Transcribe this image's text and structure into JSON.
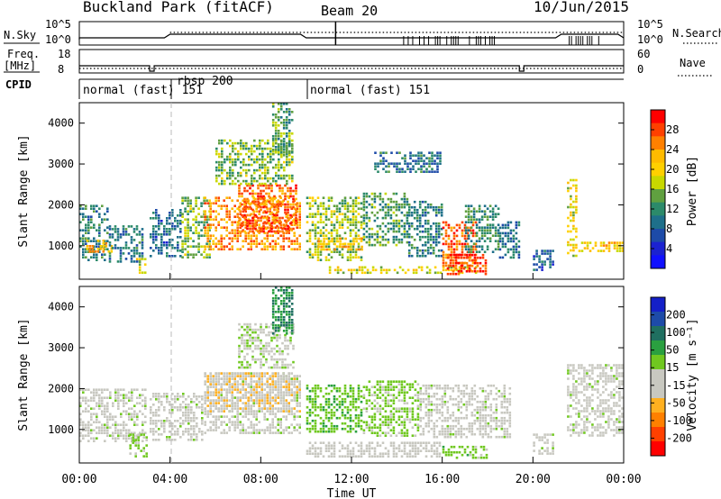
{
  "header": {
    "title": "Buckland Park (fitACF)",
    "beam": "Beam 20",
    "date": "10/Jun/2015"
  },
  "panels": {
    "nsky_label": "N.Sky",
    "nsearch_label": "N.Search",
    "freq_label_1": "Freq.",
    "freq_label_2": "[MHz]",
    "nave_label": "Nave",
    "cpid_label": "CPID",
    "nsky_ticks": [
      "10^5",
      "10^0"
    ],
    "nsearch_ticks": [
      "10^5",
      "10^0"
    ],
    "freq_ticks": [
      "18",
      "8"
    ],
    "nave_ticks": [
      "60",
      "0"
    ],
    "cpid_segments": [
      {
        "label": "normal (fast) 151",
        "start_hour": 0,
        "end_hour": 3.9
      },
      {
        "label": "rbsp 200",
        "start_hour": 3.9,
        "end_hour": 10.0
      },
      {
        "label": "normal (fast) 151",
        "start_hour": 10.0,
        "end_hour": 24
      }
    ]
  },
  "colorbars": {
    "power": {
      "label": "Power [dB]",
      "ticks": [
        "28",
        "24",
        "20",
        "16",
        "12",
        "8",
        "4"
      ],
      "colors": [
        "#ff0000",
        "#ff4000",
        "#ff8000",
        "#ffbb00",
        "#ffd000",
        "#c8d800",
        "#60a040",
        "#2c8a6a",
        "#1e6f8a",
        "#1d4ba8",
        "#1b22d0",
        "#1010ff"
      ]
    },
    "velocity": {
      "label": "Velocity [m s⁻¹]",
      "ticks": [
        "200",
        "100",
        "50",
        "15",
        "-15",
        "-50",
        "-100",
        "-200"
      ],
      "colors": [
        "#1420c8",
        "#1d4ba8",
        "#1f6f60",
        "#2aa040",
        "#70c820",
        "#c8c8c0",
        "#c8c8c0",
        "#ffb020",
        "#ff8000",
        "#ff4000",
        "#ff0000"
      ]
    }
  },
  "chart_data": [
    {
      "type": "heatmap",
      "title": "",
      "quantity": "Power",
      "xlabel": "Time UT",
      "ylabel": "Slant Range [km]",
      "xlim": [
        0,
        24
      ],
      "ylim": [
        180,
        4500
      ],
      "x_ticks": [
        "00:00",
        "04:00",
        "08:00",
        "12:00",
        "16:00",
        "20:00",
        "00:00"
      ],
      "y_ticks": [
        1000,
        2000,
        3000,
        4000
      ],
      "zlim": [
        0,
        30
      ],
      "regions": [
        {
          "t": [
            0.0,
            1.3
          ],
          "r": [
            600,
            2000
          ],
          "value": 10
        },
        {
          "t": [
            0.3,
            1.5
          ],
          "r": [
            850,
            1150
          ],
          "value": 22
        },
        {
          "t": [
            1.3,
            2.8
          ],
          "r": [
            600,
            1500
          ],
          "value": 9
        },
        {
          "t": [
            2.5,
            3.0
          ],
          "r": [
            300,
            700
          ],
          "value": 18
        },
        {
          "t": [
            3.1,
            4.5
          ],
          "r": [
            700,
            1900
          ],
          "value": 8
        },
        {
          "t": [
            4.5,
            5.8
          ],
          "r": [
            700,
            2200
          ],
          "value": 14
        },
        {
          "t": [
            5.5,
            9.8
          ],
          "r": [
            900,
            2200
          ],
          "value": 24
        },
        {
          "t": [
            7.0,
            9.6
          ],
          "r": [
            1300,
            2500
          ],
          "value": 26
        },
        {
          "t": [
            6.0,
            9.5
          ],
          "r": [
            2500,
            3600
          ],
          "value": 14
        },
        {
          "t": [
            8.5,
            9.5
          ],
          "r": [
            3200,
            4500
          ],
          "value": 12
        },
        {
          "t": [
            10.0,
            12.5
          ],
          "r": [
            600,
            2200
          ],
          "value": 15
        },
        {
          "t": [
            10.5,
            12.5
          ],
          "r": [
            900,
            1200
          ],
          "value": 22
        },
        {
          "t": [
            12.5,
            14.5
          ],
          "r": [
            1000,
            2300
          ],
          "value": 12
        },
        {
          "t": [
            11.0,
            17.5
          ],
          "r": [
            300,
            500
          ],
          "value": 18
        },
        {
          "t": [
            14.5,
            16.0
          ],
          "r": [
            700,
            2100
          ],
          "value": 10
        },
        {
          "t": [
            16.0,
            17.5
          ],
          "r": [
            500,
            1600
          ],
          "value": 26
        },
        {
          "t": [
            16.2,
            18.0
          ],
          "r": [
            300,
            800
          ],
          "value": 28
        },
        {
          "t": [
            17.0,
            18.5
          ],
          "r": [
            800,
            2000
          ],
          "value": 11
        },
        {
          "t": [
            18.5,
            19.5
          ],
          "r": [
            700,
            1600
          ],
          "value": 8
        },
        {
          "t": [
            20.0,
            21.0
          ],
          "r": [
            400,
            900
          ],
          "value": 7
        },
        {
          "t": [
            21.5,
            22.0
          ],
          "r": [
            700,
            2700
          ],
          "value": 18
        },
        {
          "t": [
            22.0,
            24.0
          ],
          "r": [
            850,
            1100
          ],
          "value": 20
        },
        {
          "t": [
            13.0,
            16.0
          ],
          "r": [
            2800,
            3300
          ],
          "value": 9
        }
      ]
    },
    {
      "type": "heatmap",
      "title": "",
      "quantity": "Velocity",
      "xlabel": "Time UT",
      "ylabel": "Slant Range [km]",
      "xlim": [
        0,
        24
      ],
      "ylim": [
        180,
        4500
      ],
      "x_ticks": [
        "00:00",
        "04:00",
        "08:00",
        "12:00",
        "16:00",
        "20:00",
        "00:00"
      ],
      "y_ticks": [
        1000,
        2000,
        3000,
        4000
      ],
      "zlim": [
        -250,
        250
      ],
      "regions": [
        {
          "t": [
            0.0,
            3.0
          ],
          "r": [
            700,
            2000
          ],
          "value": 0
        },
        {
          "t": [
            2.2,
            3.0
          ],
          "r": [
            300,
            900
          ],
          "value": 40
        },
        {
          "t": [
            3.1,
            5.5
          ],
          "r": [
            700,
            1900
          ],
          "value": 0
        },
        {
          "t": [
            5.5,
            9.8
          ],
          "r": [
            900,
            2400
          ],
          "value": 0
        },
        {
          "t": [
            5.5,
            9.8
          ],
          "r": [
            1400,
            2400
          ],
          "value": -60
        },
        {
          "t": [
            7.0,
            9.5
          ],
          "r": [
            2500,
            3600
          ],
          "value": 10
        },
        {
          "t": [
            8.5,
            9.5
          ],
          "r": [
            3300,
            4500
          ],
          "value": 120
        },
        {
          "t": [
            10.0,
            12.5
          ],
          "r": [
            900,
            2100
          ],
          "value": 60
        },
        {
          "t": [
            10.0,
            16.0
          ],
          "r": [
            300,
            700
          ],
          "value": -40
        },
        {
          "t": [
            12.5,
            15.0
          ],
          "r": [
            800,
            2200
          ],
          "value": 40
        },
        {
          "t": [
            15.0,
            19.0
          ],
          "r": [
            800,
            2100
          ],
          "value": 0
        },
        {
          "t": [
            16.0,
            18.0
          ],
          "r": [
            300,
            600
          ],
          "value": 50
        },
        {
          "t": [
            20.0,
            21.0
          ],
          "r": [
            400,
            900
          ],
          "value": 0
        },
        {
          "t": [
            21.5,
            24.0
          ],
          "r": [
            800,
            2600
          ],
          "value": 0
        }
      ]
    }
  ]
}
